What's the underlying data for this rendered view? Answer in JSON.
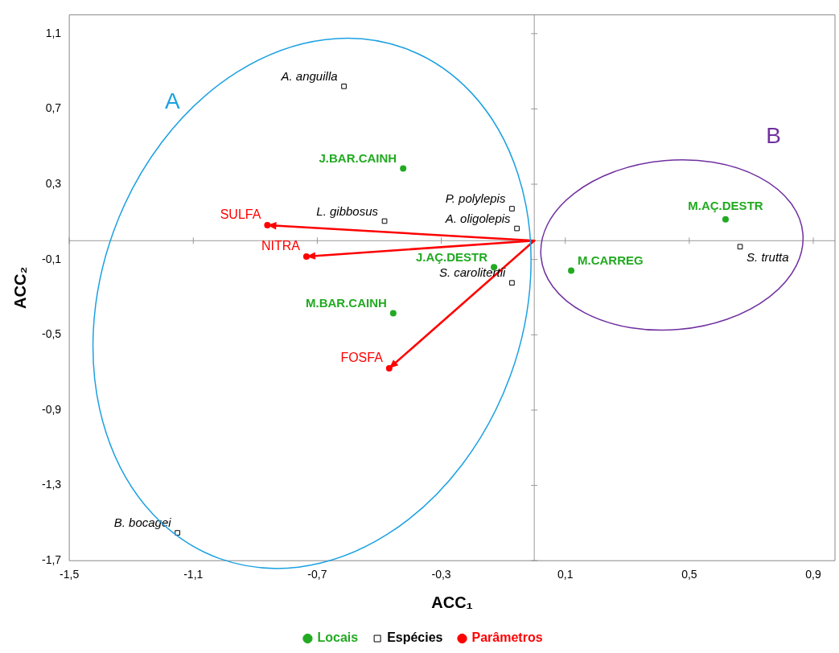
{
  "chart_data": {
    "type": "scatter",
    "xlabel": "ACC₁",
    "ylabel": "ACC₂",
    "xlim": [
      -1.5,
      0.97
    ],
    "ylim": [
      -1.7,
      1.2
    ],
    "xticks": [
      {
        "value": -1.5,
        "label": "-1,5"
      },
      {
        "value": -1.1,
        "label": "-1,1"
      },
      {
        "value": -0.7,
        "label": "-0,7"
      },
      {
        "value": -0.3,
        "label": "-0,3"
      },
      {
        "value": 0.1,
        "label": "0,1"
      },
      {
        "value": 0.5,
        "label": "0,5"
      },
      {
        "value": 0.9,
        "label": "0,9"
      }
    ],
    "yticks": [
      {
        "value": -1.7,
        "label": "-1,7"
      },
      {
        "value": -1.3,
        "label": "-1,3"
      },
      {
        "value": -0.9,
        "label": "-0,9"
      },
      {
        "value": -0.5,
        "label": "-0,5"
      },
      {
        "value": -0.1,
        "label": "-0,1"
      },
      {
        "value": 0.3,
        "label": "0,3"
      },
      {
        "value": 0.7,
        "label": "0,7"
      },
      {
        "value": 1.1,
        "label": "1,1"
      }
    ],
    "grid": false,
    "legend": "bottom",
    "annotations": [
      "A",
      "B"
    ],
    "series": [
      {
        "name": "Locais",
        "marker": "circle",
        "color": "#22aa22",
        "x": [
          -0.423,
          0.617,
          0.119,
          -0.13,
          -0.455
        ],
        "values": [
          0.384,
          0.113,
          -0.159,
          -0.141,
          -0.385
        ],
        "value_labels": [
          "J.BAR.CAINH",
          "M.AÇ.DESTR",
          "M.CARREG",
          "J.AÇ.DESTR",
          "M.BAR.CAINH"
        ]
      },
      {
        "name": "Espécies",
        "marker": "square",
        "color": "#000000",
        "x": [
          -0.614,
          -0.483,
          -0.072,
          -0.056,
          -0.072,
          0.664,
          -1.151
        ],
        "values": [
          0.82,
          0.104,
          0.17,
          0.065,
          -0.224,
          -0.032,
          -1.552
        ],
        "value_labels": [
          "A. anguilla",
          "L. gibbosus",
          "P. polylepis",
          "A. oligolepis",
          "S. carolitertii",
          "S. trutta",
          "B. bocagei"
        ]
      },
      {
        "name": "Parâmetros",
        "marker": "circle",
        "line_style": "solid",
        "color": "#ff0000",
        "x": [
          -0.861,
          -0.735,
          -0.468
        ],
        "values": [
          0.082,
          -0.084,
          -0.678
        ],
        "value_labels": [
          "SULFA",
          "NITRA",
          "FOSFA"
        ]
      }
    ]
  }
}
